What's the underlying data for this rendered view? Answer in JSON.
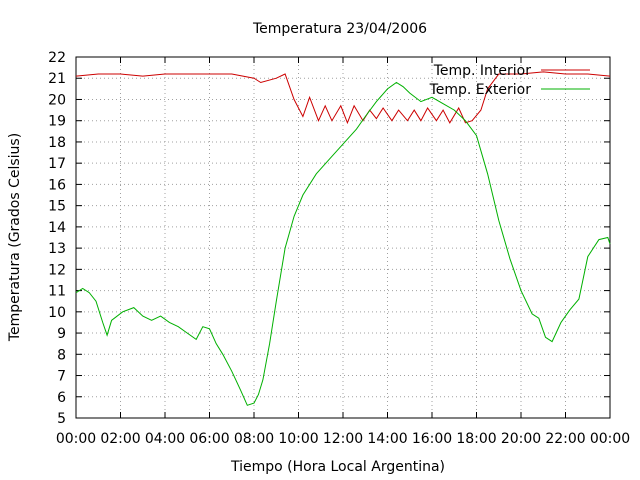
{
  "chart_data": {
    "type": "line",
    "title": "Temperatura 23/04/2006",
    "xlabel": "Tiempo (Hora Local Argentina)",
    "ylabel": "Temperatura (Grados Celsius)",
    "xlim": [
      0,
      24
    ],
    "ylim": [
      5,
      22
    ],
    "x_tick_labels": [
      "00:00",
      "02:00",
      "04:00",
      "06:00",
      "08:00",
      "10:00",
      "12:00",
      "14:00",
      "16:00",
      "18:00",
      "20:00",
      "22:00",
      "00:00"
    ],
    "y_ticks": [
      5,
      6,
      7,
      8,
      9,
      10,
      11,
      12,
      13,
      14,
      15,
      16,
      17,
      18,
      19,
      20,
      21,
      22
    ],
    "grid": true,
    "legend_position": "top-right",
    "series": [
      {
        "name": "Temp. Interior",
        "color": "#cc0000",
        "x": [
          0,
          1,
          2,
          3,
          4,
          5,
          6,
          7,
          8,
          8.3,
          9,
          9.4,
          9.8,
          10.2,
          10.5,
          10.9,
          11.2,
          11.5,
          11.9,
          12.2,
          12.5,
          12.9,
          13.2,
          13.5,
          13.8,
          14.2,
          14.5,
          14.9,
          15.2,
          15.5,
          15.8,
          16.2,
          16.5,
          16.8,
          17.2,
          17.5,
          17.8,
          18.2,
          18.5,
          19,
          20,
          21,
          22,
          23,
          24
        ],
        "y": [
          21.1,
          21.2,
          21.2,
          21.1,
          21.2,
          21.2,
          21.2,
          21.2,
          21.0,
          20.8,
          21.0,
          21.2,
          20.0,
          19.2,
          20.1,
          19.0,
          19.7,
          19.0,
          19.7,
          18.9,
          19.7,
          19.0,
          19.5,
          19.1,
          19.6,
          19.0,
          19.5,
          19.0,
          19.5,
          19.0,
          19.6,
          19.0,
          19.5,
          18.9,
          19.6,
          18.9,
          19.0,
          19.5,
          20.5,
          21.2,
          21.2,
          21.3,
          21.2,
          21.2,
          21.1
        ]
      },
      {
        "name": "Temp. Exterior",
        "color": "#00b000",
        "x": [
          0,
          0.3,
          0.6,
          0.9,
          1.2,
          1.4,
          1.6,
          2.1,
          2.6,
          3,
          3.4,
          3.8,
          4.2,
          4.6,
          5,
          5.4,
          5.7,
          6,
          6.3,
          6.6,
          7,
          7.4,
          7.7,
          8.0,
          8.2,
          8.4,
          8.7,
          9.0,
          9.4,
          9.8,
          10.2,
          10.8,
          11.4,
          12.0,
          12.6,
          13.0,
          13.5,
          14.0,
          14.4,
          14.7,
          15.0,
          15.5,
          16.0,
          16.5,
          17.0,
          17.5,
          18.0,
          18.5,
          19.0,
          19.5,
          20.0,
          20.5,
          20.8,
          21.1,
          21.4,
          21.8,
          22.2,
          22.6,
          23.0,
          23.5,
          23.9,
          24
        ],
        "y": [
          10.9,
          11.1,
          10.9,
          10.5,
          9.5,
          8.9,
          9.6,
          10.0,
          10.2,
          9.8,
          9.6,
          9.8,
          9.5,
          9.3,
          9.0,
          8.7,
          9.3,
          9.2,
          8.5,
          8.0,
          7.2,
          6.3,
          5.6,
          5.7,
          6.1,
          6.8,
          8.5,
          10.5,
          13.0,
          14.5,
          15.5,
          16.5,
          17.2,
          17.9,
          18.6,
          19.2,
          19.9,
          20.5,
          20.8,
          20.6,
          20.3,
          19.9,
          20.1,
          19.8,
          19.5,
          19.0,
          18.3,
          16.5,
          14.3,
          12.5,
          11.0,
          9.9,
          9.7,
          8.8,
          8.6,
          9.5,
          10.1,
          10.6,
          12.6,
          13.4,
          13.5,
          13.2
        ]
      }
    ]
  }
}
